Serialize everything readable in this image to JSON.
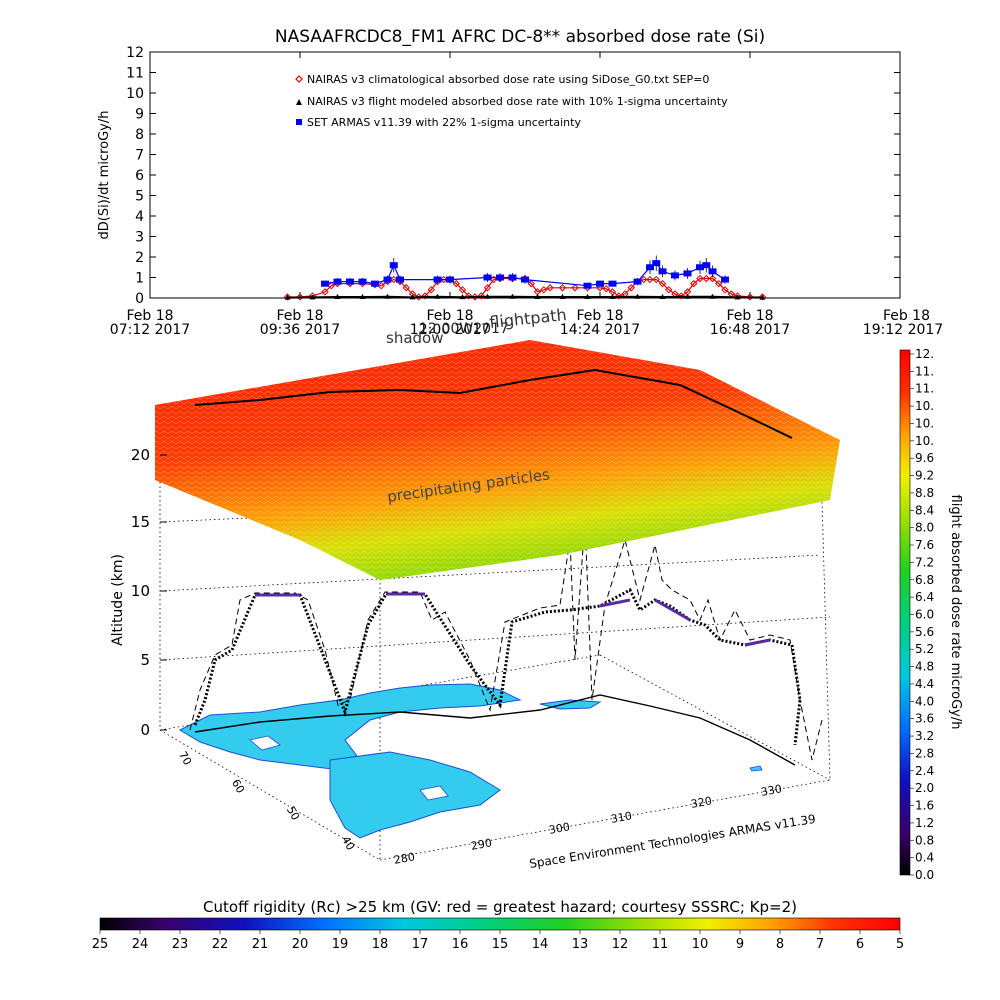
{
  "title": "NASAAFRCDC8_FM1 AFRC DC-8** absorbed dose rate (Si)",
  "colors": {
    "nairas_clim": "#e00000",
    "nairas_flight": "#000000",
    "armas": "#0000ff",
    "land": "#33ccee",
    "land_edge": "#1c4fd0"
  },
  "legend": [
    {
      "marker": "diamond",
      "label": "NAIRAS v3 climatological absorbed dose rate using SiDose_G0.txt SEP=0"
    },
    {
      "marker": "triangle",
      "label": "NAIRAS v3 flight modeled absorbed dose rate with 10% 1-sigma uncertainty"
    },
    {
      "marker": "square",
      "label": "SET ARMAS v11.39 with 22% 1-sigma uncertainty"
    }
  ],
  "scene_labels": {
    "shadow": "shadow",
    "flightpath": "flightpath",
    "shadow_time": "12:00W2017",
    "precipitating": "precipitating particles",
    "credit": "Space Environment Technologies ARMAS v11.39",
    "altitude_label": "Altitude (km)",
    "altitude_ticks": [
      "0",
      "5",
      "10",
      "15",
      "20"
    ],
    "lon_ticks": [
      "280",
      "290",
      "300",
      "310",
      "320",
      "330"
    ],
    "lat_ticks": [
      "40",
      "50",
      "60",
      "70"
    ]
  },
  "colorbar_right": {
    "label": "flight absorbed dose rate microGy/h",
    "ticks": [
      "12.",
      "11.",
      "11.",
      "10.",
      "10.",
      "10.",
      "9.6",
      "9.2",
      "8.8",
      "8.4",
      "8.0",
      "7.6",
      "7.2",
      "6.8",
      "6.4",
      "6.0",
      "5.6",
      "5.2",
      "4.8",
      "4.4",
      "4.0",
      "3.6",
      "3.2",
      "2.8",
      "2.4",
      "2.0",
      "1.6",
      "1.2",
      "0.8",
      "0.4",
      "0.0"
    ]
  },
  "colorbar_bottom": {
    "title": "Cutoff rigidity (Rc) >25 km (GV: red = greatest hazard; courtesy SSSRC; Kp=2)",
    "ticks": [
      "25",
      "24",
      "23",
      "22",
      "21",
      "20",
      "19",
      "18",
      "17",
      "16",
      "15",
      "14",
      "13",
      "12",
      "11",
      "10",
      "9",
      "8",
      "7",
      "6",
      "5"
    ]
  },
  "chart_data": {
    "type": "scatter",
    "title": "NASAAFRCDC8_FM1 AFRC DC-8** absorbed dose rate (Si)",
    "xlabel": "",
    "ylabel": "dD(Si)/dt microGy/h",
    "ylim": [
      0,
      12
    ],
    "yticks": [
      "0",
      "1",
      "2",
      "3",
      "4",
      "5",
      "6",
      "7",
      "8",
      "9",
      "10",
      "11",
      "12"
    ],
    "xlim_hours": [
      7.2,
      19.2
    ],
    "xticks": [
      {
        "line1": "Feb 18",
        "line2": "07:12 2017"
      },
      {
        "line1": "Feb 18",
        "line2": "09:36 2017"
      },
      {
        "line1": "Feb 18",
        "line2": "12:00 2017"
      },
      {
        "line1": "Feb 18",
        "line2": "14:24 2017"
      },
      {
        "line1": "Feb 18",
        "line2": "16:48 2017"
      },
      {
        "line1": "Feb 18",
        "line2": "19:12 2017"
      }
    ],
    "series": [
      {
        "name": "NAIRAS v3 climatological absorbed dose rate using SiDose_G0.txt SEP=0",
        "color": "#e00000",
        "points": [
          [
            9.4,
            0.05
          ],
          [
            9.6,
            0.05
          ],
          [
            9.8,
            0.1
          ],
          [
            10.0,
            0.3
          ],
          [
            10.1,
            0.6
          ],
          [
            10.2,
            0.7
          ],
          [
            10.4,
            0.7
          ],
          [
            10.6,
            0.7
          ],
          [
            10.8,
            0.65
          ],
          [
            10.9,
            0.6
          ],
          [
            11.0,
            0.8
          ],
          [
            11.1,
            0.9
          ],
          [
            11.2,
            0.8
          ],
          [
            11.3,
            0.5
          ],
          [
            11.4,
            0.2
          ],
          [
            11.5,
            0.05
          ],
          [
            11.6,
            0.1
          ],
          [
            11.7,
            0.4
          ],
          [
            11.8,
            0.8
          ],
          [
            11.9,
            0.9
          ],
          [
            12.0,
            0.9
          ],
          [
            12.1,
            0.7
          ],
          [
            12.2,
            0.4
          ],
          [
            12.3,
            0.1
          ],
          [
            12.4,
            0.05
          ],
          [
            12.5,
            0.1
          ],
          [
            12.6,
            0.5
          ],
          [
            12.7,
            0.9
          ],
          [
            12.8,
            0.95
          ],
          [
            13.0,
            0.95
          ],
          [
            13.2,
            0.95
          ],
          [
            13.3,
            0.7
          ],
          [
            13.4,
            0.3
          ],
          [
            13.5,
            0.4
          ],
          [
            13.6,
            0.5
          ],
          [
            13.8,
            0.5
          ],
          [
            14.0,
            0.5
          ],
          [
            14.2,
            0.5
          ],
          [
            14.4,
            0.5
          ],
          [
            14.5,
            0.45
          ],
          [
            14.6,
            0.3
          ],
          [
            14.7,
            0.1
          ],
          [
            14.8,
            0.2
          ],
          [
            14.9,
            0.5
          ],
          [
            15.0,
            0.8
          ],
          [
            15.1,
            0.9
          ],
          [
            15.2,
            0.9
          ],
          [
            15.3,
            0.9
          ],
          [
            15.4,
            0.7
          ],
          [
            15.5,
            0.4
          ],
          [
            15.6,
            0.2
          ],
          [
            15.7,
            0.1
          ],
          [
            15.8,
            0.3
          ],
          [
            15.9,
            0.7
          ],
          [
            16.0,
            0.95
          ],
          [
            16.1,
            0.95
          ],
          [
            16.2,
            0.95
          ],
          [
            16.3,
            0.7
          ],
          [
            16.4,
            0.4
          ],
          [
            16.5,
            0.2
          ],
          [
            16.6,
            0.1
          ],
          [
            16.8,
            0.05
          ],
          [
            17.0,
            0.05
          ]
        ]
      },
      {
        "name": "NAIRAS v3 flight modeled absorbed dose rate with 10% 1-sigma uncertainty",
        "color": "#000000",
        "points": [
          [
            9.4,
            0.02
          ],
          [
            9.8,
            0.03
          ],
          [
            10.2,
            0.05
          ],
          [
            10.6,
            0.05
          ],
          [
            11.0,
            0.06
          ],
          [
            11.4,
            0.03
          ],
          [
            11.8,
            0.06
          ],
          [
            12.2,
            0.04
          ],
          [
            12.6,
            0.06
          ],
          [
            13.0,
            0.06
          ],
          [
            13.4,
            0.05
          ],
          [
            13.8,
            0.05
          ],
          [
            14.2,
            0.05
          ],
          [
            14.6,
            0.05
          ],
          [
            15.0,
            0.06
          ],
          [
            15.4,
            0.05
          ],
          [
            15.8,
            0.06
          ],
          [
            16.2,
            0.06
          ],
          [
            16.6,
            0.03
          ],
          [
            17.0,
            0.02
          ]
        ]
      },
      {
        "name": "SET ARMAS v11.39 with 22% 1-sigma uncertainty",
        "color": "#0000ff",
        "points": [
          [
            10.0,
            0.7
          ],
          [
            10.2,
            0.8
          ],
          [
            10.4,
            0.8
          ],
          [
            10.6,
            0.8
          ],
          [
            10.8,
            0.7
          ],
          [
            11.0,
            0.9
          ],
          [
            11.1,
            1.6
          ],
          [
            11.2,
            0.9
          ],
          [
            11.8,
            0.9
          ],
          [
            12.0,
            0.9
          ],
          [
            12.6,
            1.0
          ],
          [
            12.8,
            1.0
          ],
          [
            13.0,
            1.0
          ],
          [
            13.2,
            0.9
          ],
          [
            14.2,
            0.6
          ],
          [
            14.4,
            0.7
          ],
          [
            14.6,
            0.7
          ],
          [
            15.0,
            0.8
          ],
          [
            15.2,
            1.5
          ],
          [
            15.3,
            1.7
          ],
          [
            15.4,
            1.3
          ],
          [
            15.6,
            1.1
          ],
          [
            15.8,
            1.2
          ],
          [
            16.0,
            1.5
          ],
          [
            16.1,
            1.6
          ],
          [
            16.2,
            1.3
          ],
          [
            16.4,
            0.9
          ]
        ]
      }
    ]
  }
}
